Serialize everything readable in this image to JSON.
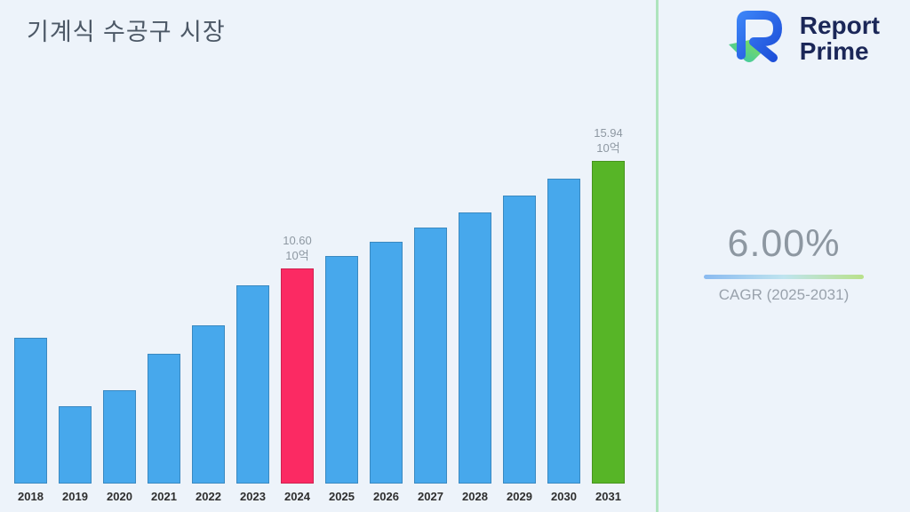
{
  "page": {
    "title": "기계식 수공구 시장",
    "background": "#edf3fa"
  },
  "logo": {
    "line1": "Report",
    "line2": "Prime"
  },
  "stats": {
    "cagr_value": "6.00%",
    "cagr_label": "CAGR (2025-2031)"
  },
  "chart_data": {
    "type": "bar",
    "title": "기계식 수공구 시장",
    "categories": [
      "2018",
      "2019",
      "2020",
      "2021",
      "2022",
      "2023",
      "2024",
      "2025",
      "2026",
      "2027",
      "2028",
      "2029",
      "2030",
      "2031"
    ],
    "values": [
      7.2,
      3.8,
      4.6,
      6.4,
      7.8,
      9.8,
      10.6,
      11.24,
      11.91,
      12.63,
      13.38,
      14.19,
      15.04,
      15.94
    ],
    "unit": "10억",
    "xlabel": "",
    "ylabel": "",
    "ylim": [
      0,
      17
    ],
    "grid": false,
    "legend": false,
    "annotations": [
      {
        "year": "2024",
        "lines": [
          "10.60",
          "10억"
        ]
      },
      {
        "year": "2031",
        "lines": [
          "15.94",
          "10억"
        ]
      }
    ],
    "colors": {
      "default": "#47a8ec",
      "highlights": {
        "2024": "#fb2a63",
        "2031": "#57b527"
      }
    }
  }
}
